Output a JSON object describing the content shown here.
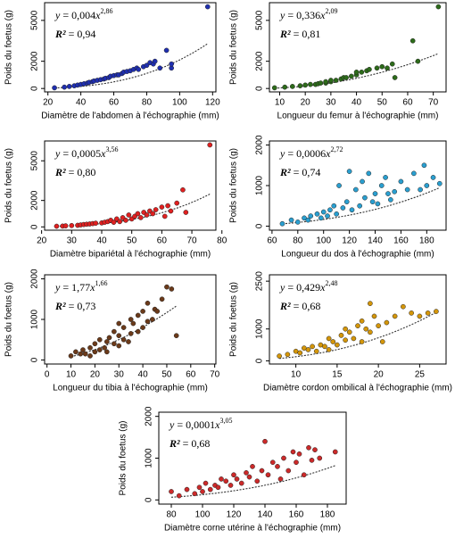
{
  "labels": {
    "y": "y",
    "eq": " = ",
    "x": "x",
    "r2": "R²"
  },
  "chart_data": [
    {
      "type": "scatter",
      "ylabel": "Poids du foetus (g)",
      "xlabel": "Diamètre de l'abdomen à l'échographie (mm)",
      "color": "#1f2fb0",
      "fit": {
        "a": {
          "value": 0.004,
          "label": "0,004"
        },
        "b": {
          "value": 2.86,
          "label": "2,86"
        },
        "r2": {
          "value": 0.94,
          "label": "0,94"
        }
      },
      "xlim": [
        18,
        122
      ],
      "xticks": [
        20,
        40,
        60,
        80,
        100,
        120
      ],
      "ylim": [
        -250,
        6300
      ],
      "yticks": [
        0,
        2000,
        5000
      ],
      "x": [
        24,
        30,
        33,
        36,
        38,
        40,
        42,
        44,
        45,
        47,
        48,
        50,
        52,
        54,
        55,
        57,
        58,
        60,
        62,
        63,
        65,
        66,
        68,
        70,
        72,
        74,
        75,
        78,
        80,
        82,
        84,
        85,
        88,
        92,
        95,
        95,
        117
      ],
      "y": [
        50,
        100,
        150,
        200,
        250,
        300,
        350,
        400,
        450,
        500,
        550,
        600,
        650,
        700,
        750,
        800,
        900,
        950,
        1000,
        1000,
        1100,
        1200,
        1250,
        1300,
        1400,
        1500,
        1400,
        1600,
        1700,
        1900,
        1800,
        2000,
        1500,
        2800,
        1500,
        1800,
        6000
      ]
    },
    {
      "type": "scatter",
      "ylabel": "Poids du foetus (g)",
      "xlabel": "Longueur du femur à l'échographie (mm)",
      "color": "#2d6b1a",
      "fit": {
        "a": {
          "value": 0.336,
          "label": "0,336"
        },
        "b": {
          "value": 2.09,
          "label": "2,09"
        },
        "r2": {
          "value": 0.81,
          "label": "0,81"
        }
      },
      "xlim": [
        6,
        75
      ],
      "xticks": [
        10,
        20,
        30,
        40,
        50,
        60,
        70
      ],
      "ylim": [
        -250,
        6300
      ],
      "yticks": [
        0,
        2000,
        5000
      ],
      "x": [
        8,
        12,
        15,
        18,
        20,
        22,
        24,
        25,
        26,
        28,
        28,
        30,
        30,
        32,
        34,
        35,
        36,
        38,
        40,
        40,
        42,
        44,
        45,
        48,
        50,
        52,
        54,
        55,
        62,
        64,
        72
      ],
      "y": [
        50,
        100,
        150,
        200,
        250,
        300,
        300,
        350,
        400,
        400,
        500,
        500,
        600,
        600,
        700,
        800,
        800,
        900,
        1000,
        1200,
        1200,
        1300,
        1400,
        1500,
        1600,
        1500,
        1800,
        800,
        3500,
        2000,
        6000
      ]
    },
    {
      "type": "scatter",
      "ylabel": "Poids du foetus (g)",
      "xlabel": "Diamètre bipariétal à l'échographie (mm)",
      "color": "#e02020",
      "fit": {
        "a": {
          "value": 0.0005,
          "label": "0,0005"
        },
        "b": {
          "value": 3.56,
          "label": "3,56"
        },
        "r2": {
          "value": 0.8,
          "label": "0,80"
        }
      },
      "xlim": [
        21,
        78
      ],
      "xticks": [
        20,
        30,
        40,
        50,
        60,
        70,
        80
      ],
      "ylim": [
        -250,
        6500
      ],
      "yticks": [
        0,
        2000,
        5000
      ],
      "x": [
        25,
        27,
        28,
        30,
        32,
        33,
        34,
        35,
        36,
        37,
        38,
        40,
        41,
        42,
        43,
        44,
        45,
        46,
        47,
        48,
        49,
        50,
        51,
        52,
        53,
        54,
        55,
        56,
        57,
        58,
        60,
        61,
        62,
        63,
        65,
        67,
        68,
        76
      ],
      "y": [
        50,
        60,
        80,
        100,
        120,
        150,
        180,
        200,
        220,
        250,
        280,
        300,
        350,
        400,
        500,
        350,
        600,
        400,
        700,
        500,
        900,
        600,
        800,
        1000,
        700,
        1100,
        900,
        1200,
        1000,
        1300,
        1500,
        800,
        1600,
        1200,
        1800,
        2800,
        1100,
        6200
      ]
    },
    {
      "type": "scatter",
      "ylabel": "Poids du foetus (g)",
      "xlabel": "Longueur du dos à l'échographie (mm)",
      "color": "#2a9fd0",
      "fit": {
        "a": {
          "value": 0.0006,
          "label": "0,0006"
        },
        "b": {
          "value": 2.72,
          "label": "2,72"
        },
        "r2": {
          "value": 0.74,
          "label": "0,74"
        }
      },
      "xlim": [
        58,
        195
      ],
      "xticks": [
        60,
        80,
        100,
        120,
        140,
        160,
        180
      ],
      "ylim": [
        -100,
        2100
      ],
      "yticks": [
        0,
        1000,
        2000
      ],
      "x": [
        68,
        75,
        80,
        85,
        88,
        90,
        95,
        98,
        100,
        103,
        105,
        108,
        110,
        112,
        115,
        118,
        120,
        122,
        125,
        128,
        130,
        132,
        135,
        138,
        140,
        142,
        145,
        148,
        150,
        152,
        155,
        160,
        165,
        170,
        175,
        178,
        180,
        185,
        190
      ],
      "y": [
        60,
        150,
        100,
        200,
        150,
        250,
        300,
        200,
        350,
        250,
        400,
        500,
        300,
        1000,
        450,
        600,
        1350,
        400,
        900,
        500,
        1100,
        700,
        1300,
        600,
        800,
        550,
        1000,
        1200,
        800,
        650,
        850,
        1100,
        900,
        1300,
        900,
        1500,
        1000,
        1200,
        1050
      ]
    },
    {
      "type": "scatter",
      "ylabel": "Poids du foetus (g)",
      "xlabel": "Longueur du tibia à l'échographie (mm)",
      "color": "#6b3a1a",
      "fit": {
        "a": {
          "value": 1.77,
          "label": "1,77"
        },
        "b": {
          "value": 1.66,
          "label": "1,66"
        },
        "r2": {
          "value": 0.73,
          "label": "0,73"
        }
      },
      "xlim": [
        -1,
        70.5
      ],
      "xticks": [
        0,
        10,
        20,
        30,
        40,
        50,
        60,
        70
      ],
      "ylim": [
        -100,
        2100
      ],
      "yticks": [
        0,
        1000,
        2000
      ],
      "x": [
        10,
        12,
        14,
        15,
        16,
        18,
        18,
        20,
        20,
        22,
        22,
        24,
        25,
        25,
        26,
        28,
        28,
        30,
        30,
        30,
        32,
        32,
        34,
        35,
        35,
        36,
        38,
        38,
        40,
        40,
        42,
        42,
        44,
        45,
        46,
        48,
        50,
        52,
        54
      ],
      "y": [
        100,
        200,
        150,
        250,
        150,
        300,
        100,
        200,
        400,
        250,
        500,
        300,
        450,
        200,
        550,
        400,
        700,
        350,
        600,
        900,
        500,
        800,
        450,
        1000,
        650,
        900,
        1100,
        700,
        800,
        1200,
        950,
        1400,
        1000,
        1250,
        1200,
        1500,
        1800,
        1750,
        600
      ]
    },
    {
      "type": "scatter",
      "ylabel": "Poids du foetus (g)",
      "xlabel": "Diamètre cordon ombilical à l'échographie (mm)",
      "color": "#d4960a",
      "fit": {
        "a": {
          "value": 0.429,
          "label": "0,429"
        },
        "b": {
          "value": 2.48,
          "label": "2,48"
        },
        "r2": {
          "value": 0.68,
          "label": "0,68"
        }
      },
      "xlim": [
        6.8,
        28.2
      ],
      "xticks": [
        10,
        15,
        20,
        25
      ],
      "ylim": [
        -100,
        2700
      ],
      "yticks": [
        0,
        1000,
        2500
      ],
      "x": [
        8,
        9,
        10,
        10.5,
        11,
        11.5,
        12,
        12.5,
        13,
        13.5,
        14,
        14,
        14.5,
        15,
        15.5,
        16,
        16,
        16.5,
        17,
        17.5,
        18,
        18,
        18.5,
        19,
        19,
        19.5,
        20,
        20.5,
        21,
        22,
        23,
        24,
        25,
        26,
        27
      ],
      "y": [
        150,
        200,
        300,
        250,
        400,
        350,
        450,
        300,
        500,
        450,
        700,
        350,
        600,
        500,
        800,
        650,
        1000,
        900,
        700,
        1100,
        1250,
        600,
        1000,
        1800,
        900,
        1400,
        1100,
        600,
        1200,
        1400,
        1700,
        1500,
        1400,
        1500,
        1550
      ]
    },
    {
      "type": "scatter",
      "ylabel": "Poids du foetus (g)",
      "xlabel": "Diamètre corne utérine à l'échographie (mm)",
      "color": "#cc2a2a",
      "fit": {
        "a": {
          "value": 0.0001,
          "label": "0,0001"
        },
        "b": {
          "value": 3.05,
          "label": "3,05"
        },
        "r2": {
          "value": 0.68,
          "label": "0,68"
        }
      },
      "xlim": [
        72,
        192
      ],
      "xticks": [
        80,
        100,
        120,
        140,
        160,
        180
      ],
      "ylim": [
        -100,
        2100
      ],
      "yticks": [
        0,
        1000,
        2000
      ],
      "x": [
        80,
        85,
        90,
        95,
        98,
        100,
        102,
        105,
        108,
        110,
        112,
        115,
        118,
        120,
        122,
        125,
        128,
        130,
        132,
        135,
        138,
        140,
        142,
        145,
        148,
        150,
        152,
        155,
        158,
        160,
        162,
        165,
        168,
        170,
        172,
        175,
        185
      ],
      "y": [
        200,
        100,
        250,
        150,
        300,
        200,
        400,
        250,
        350,
        300,
        500,
        450,
        350,
        600,
        500,
        400,
        650,
        550,
        800,
        450,
        700,
        1400,
        600,
        900,
        800,
        500,
        1000,
        700,
        1150,
        900,
        1100,
        600,
        1250,
        950,
        1200,
        1000,
        1150
      ]
    }
  ]
}
